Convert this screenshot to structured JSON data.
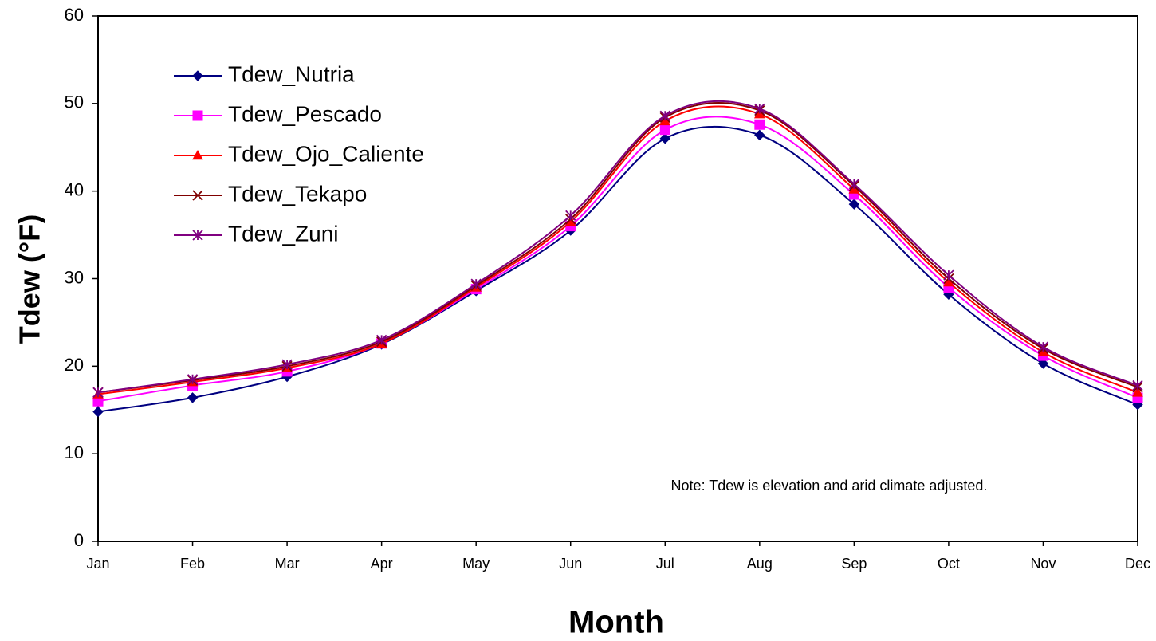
{
  "chart_data": {
    "type": "line",
    "x_label": "Month",
    "y_label": "Tdew (°F)",
    "note": "Note: Tdew  is elevation and arid climate adjusted.",
    "categories": [
      "Jan",
      "Feb",
      "Mar",
      "Apr",
      "May",
      "Jun",
      "Jul",
      "Aug",
      "Sep",
      "Oct",
      "Nov",
      "Dec"
    ],
    "series": [
      {
        "name": "Tdew_Nutria",
        "color": "#000080",
        "marker": "diamond",
        "values": [
          14.8,
          16.4,
          18.8,
          22.5,
          28.6,
          35.5,
          46.0,
          46.4,
          38.5,
          28.2,
          20.3,
          15.6
        ]
      },
      {
        "name": "Tdew_Pescado",
        "color": "#ff00ff",
        "marker": "square",
        "values": [
          16.0,
          17.8,
          19.4,
          22.6,
          28.8,
          36.0,
          47.0,
          47.6,
          39.6,
          29.0,
          21.2,
          16.4
        ]
      },
      {
        "name": "Tdew_Ojo_Caliente",
        "color": "#ff0000",
        "marker": "triangle",
        "values": [
          16.8,
          18.2,
          19.8,
          22.6,
          29.0,
          36.5,
          48.0,
          48.8,
          40.2,
          29.6,
          21.6,
          17.0
        ]
      },
      {
        "name": "Tdew_Tekapo",
        "color": "#800000",
        "marker": "x",
        "values": [
          17.0,
          18.4,
          20.0,
          22.8,
          29.2,
          36.8,
          48.4,
          49.2,
          40.6,
          30.0,
          22.0,
          17.6
        ]
      },
      {
        "name": "Tdew_Zuni",
        "color": "#800080",
        "marker": "asterisk",
        "values": [
          17.0,
          18.5,
          20.2,
          23.0,
          29.4,
          37.2,
          48.6,
          49.4,
          40.8,
          30.4,
          22.2,
          17.8
        ]
      }
    ],
    "ylim": [
      0,
      60
    ],
    "yticks": [
      0,
      10,
      20,
      30,
      40,
      50,
      60
    ],
    "smooth": true,
    "grid": false,
    "legend": "upper left"
  }
}
